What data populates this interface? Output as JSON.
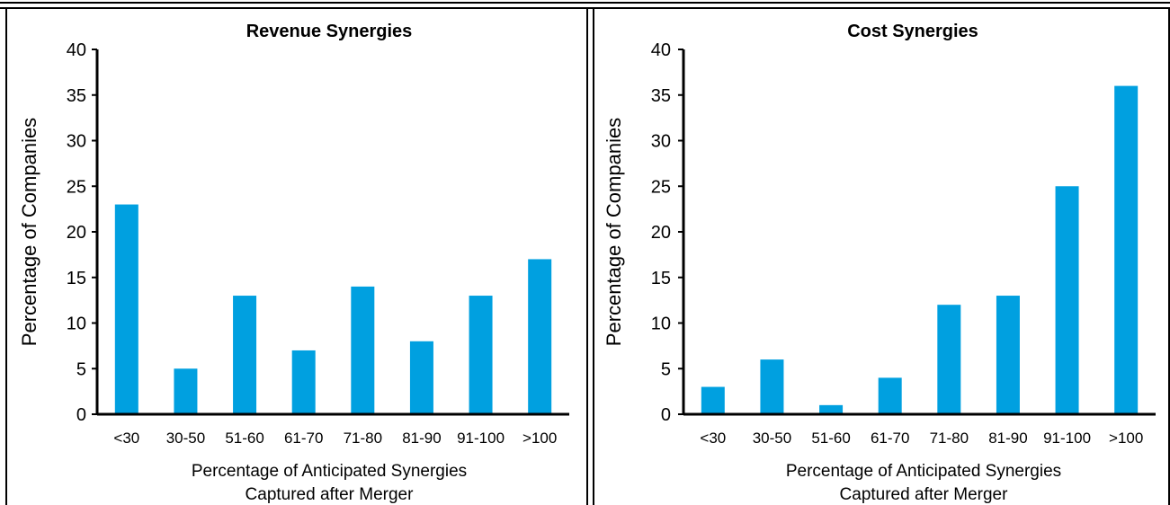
{
  "colors": {
    "bar": "#00A0E0",
    "axis": "#000000",
    "frame": "#000000",
    "background": "#FFFFFF"
  },
  "chart_data": [
    {
      "type": "bar",
      "title": "Revenue Synergies",
      "xlabel_lines": [
        "Percentage of Anticipated Synergies",
        "Captured after Merger"
      ],
      "ylabel": "Percentage of Companies",
      "categories": [
        "<30",
        "30-50",
        "51-60",
        "61-70",
        "71-80",
        "81-90",
        "91-100",
        ">100"
      ],
      "values": [
        23,
        5,
        13,
        7,
        14,
        8,
        13,
        17
      ],
      "ylim": [
        0,
        40
      ],
      "yticks": [
        0,
        5,
        10,
        15,
        20,
        25,
        30,
        35,
        40
      ],
      "grid": false,
      "legend": "none"
    },
    {
      "type": "bar",
      "title": "Cost Synergies",
      "xlabel_lines": [
        "Percentage of Anticipated Synergies",
        "Captured after Merger"
      ],
      "ylabel": "Percentage of Companies",
      "categories": [
        "<30",
        "30-50",
        "51-60",
        "61-70",
        "71-80",
        "81-90",
        "91-100",
        ">100"
      ],
      "values": [
        3,
        6,
        1,
        4,
        12,
        13,
        25,
        36
      ],
      "ylim": [
        0,
        40
      ],
      "yticks": [
        0,
        5,
        10,
        15,
        20,
        25,
        30,
        35,
        40
      ],
      "grid": false,
      "legend": "none"
    }
  ]
}
